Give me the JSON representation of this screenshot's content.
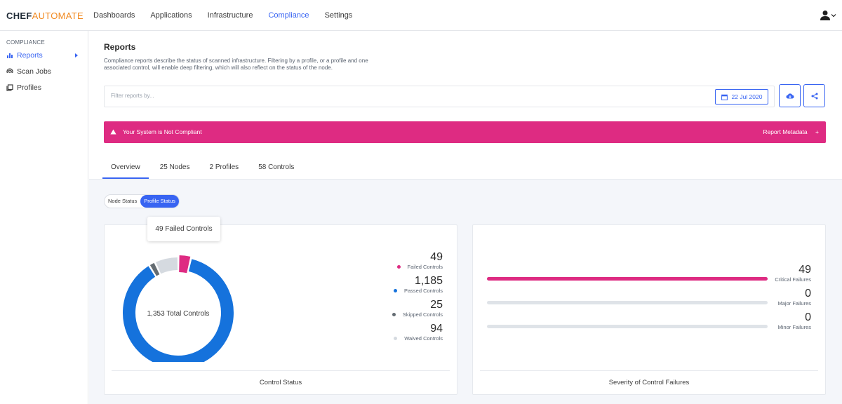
{
  "app": {
    "logo_a": "CHEF",
    "logo_b": "AUTOMATE"
  },
  "nav": {
    "items": [
      "Dashboards",
      "Applications",
      "Infrastructure",
      "Compliance",
      "Settings"
    ],
    "active": "Compliance"
  },
  "sidebar": {
    "heading": "COMPLIANCE",
    "items": [
      {
        "label": "Reports",
        "icon": "bar-chart-icon",
        "active": true
      },
      {
        "label": "Scan Jobs",
        "icon": "radar-icon",
        "active": false
      },
      {
        "label": "Profiles",
        "icon": "library-icon",
        "active": false
      }
    ]
  },
  "page": {
    "title": "Reports",
    "description": "Compliance reports describe the status of scanned infrastructure. Filtering by a profile, or a profile and one associated control, will enable deep filtering, which will also reflect on the status of the node."
  },
  "filter": {
    "placeholder": "Filter reports by...",
    "date": "22 Jul 2020"
  },
  "banner": {
    "message": "Your System is Not Compliant",
    "metadata": "Report Metadata",
    "plus": "+",
    "color": "#de2b82"
  },
  "tabs": [
    "Overview",
    "25 Nodes",
    "2 Profiles",
    "58 Controls"
  ],
  "status_toggle": {
    "options": [
      "Node Status",
      "Profile Status"
    ],
    "selected": "Profile Status"
  },
  "control_status": {
    "title": "Control Status",
    "tooltip": "49 Failed Controls",
    "center_label": "1,353 Total Controls",
    "legend": [
      {
        "value": "49",
        "label": "Failed Controls",
        "color": "#de2b82",
        "count": 49
      },
      {
        "value": "1,185",
        "label": "Passed Controls",
        "color": "#1572dc",
        "count": 1185
      },
      {
        "value": "25",
        "label": "Skipped Controls",
        "color": "#646c72",
        "count": 25
      },
      {
        "value": "94",
        "label": "Waived Controls",
        "color": "#d5dae0",
        "count": 94
      }
    ]
  },
  "severity": {
    "title": "Severity of Control Failures",
    "items": [
      {
        "value": "49",
        "label": "Critical Failures",
        "fraction": 1.0
      },
      {
        "value": "0",
        "label": "Major Failures",
        "fraction": 0
      },
      {
        "value": "0",
        "label": "Minor Failures",
        "fraction": 0
      }
    ]
  }
}
